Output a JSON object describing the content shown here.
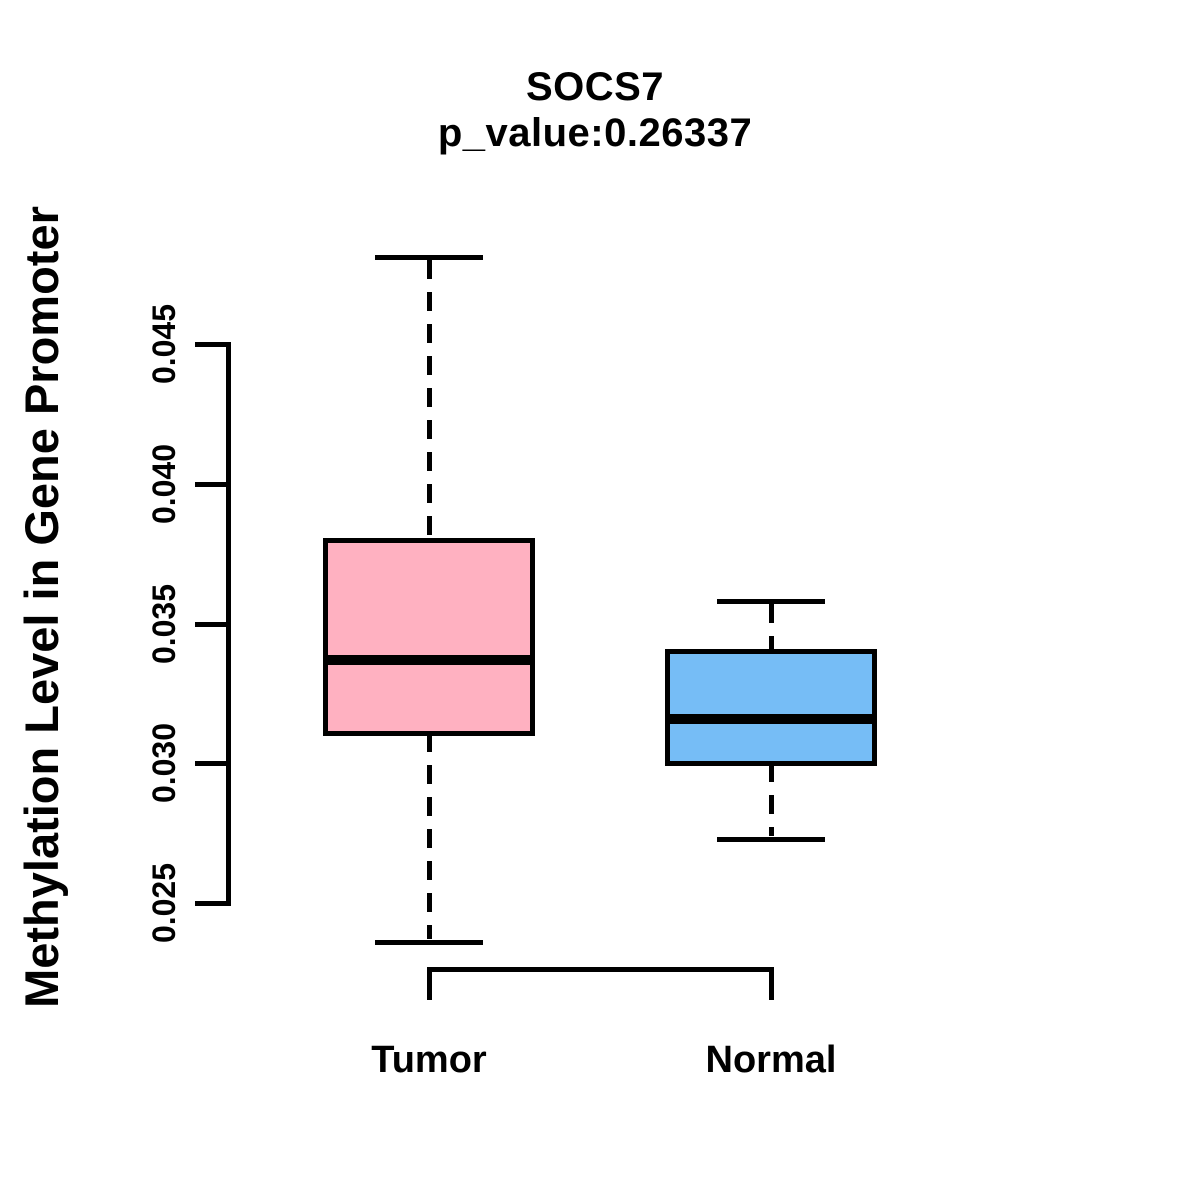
{
  "figure": {
    "title": "SOCS7",
    "subtitle": "p_value:0.26337"
  },
  "axes": {
    "y": {
      "label": "Methylation Level in Gene Promoter",
      "tick_labels": [
        "0.025",
        "0.030",
        "0.035",
        "0.040",
        "0.045"
      ]
    },
    "x": {
      "categories": [
        "Tumor",
        "Normal"
      ]
    }
  },
  "colors": {
    "tumor_fill": "#FFB1C1",
    "normal_fill": "#76BDF6",
    "line": "#000000",
    "background": "#FFFFFF"
  },
  "chart_data": {
    "type": "boxplot",
    "title": "SOCS7",
    "subtitle": "p_value:0.26337",
    "ylabel": "Methylation Level in Gene Promoter",
    "xlabel": "",
    "categories": [
      "Tumor",
      "Normal"
    ],
    "y_ticks": [
      0.025,
      0.03,
      0.035,
      0.04,
      0.045
    ],
    "ylim": [
      0.0236,
      0.0481
    ],
    "grid": false,
    "legend": false,
    "series": [
      {
        "name": "Tumor",
        "fill": "#FFB1C1",
        "whisker_low": 0.0236,
        "q1": 0.0311,
        "median": 0.0337,
        "q3": 0.038,
        "whisker_high": 0.0481
      },
      {
        "name": "Normal",
        "fill": "#76BDF6",
        "whisker_low": 0.0273,
        "q1": 0.03,
        "median": 0.0316,
        "q3": 0.034,
        "whisker_high": 0.0358
      }
    ]
  }
}
